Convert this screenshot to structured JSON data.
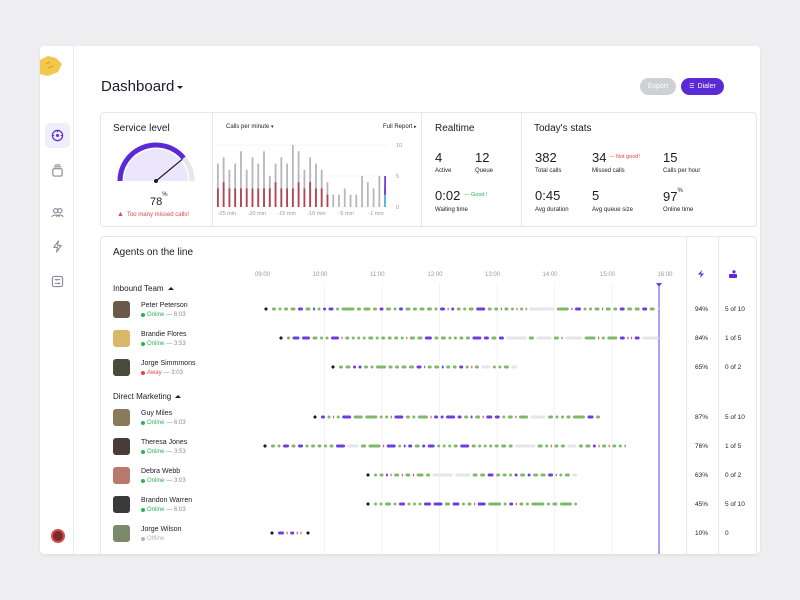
{
  "page": {
    "title": "Dashboard"
  },
  "toolbar": {
    "export_label": "Export",
    "dialer_label": "Dialer"
  },
  "sidebar": {
    "items": [
      {
        "name": "dashboard",
        "icon": "compass-icon",
        "active": true
      },
      {
        "name": "archive",
        "icon": "stack-icon",
        "active": false
      },
      {
        "name": "team",
        "icon": "users-icon",
        "active": false
      },
      {
        "name": "activity",
        "icon": "bolt-icon",
        "active": false
      },
      {
        "name": "settings",
        "icon": "sliders-icon",
        "active": false
      }
    ]
  },
  "service_level": {
    "title": "Service level",
    "value": "78",
    "unit": "%",
    "warning": "Too many missed calls!",
    "level": 0.78
  },
  "calls_chart": {
    "dropdown": "Calls per minute",
    "full_report": "Full Report",
    "y_ticks": [
      "10",
      "5",
      "0"
    ],
    "x_ticks": [
      "-25 min",
      "-20 min",
      "-15 min",
      "-10 min",
      "-5 min",
      "-1 min"
    ]
  },
  "chart_data": {
    "type": "bar",
    "title": "Calls per minute",
    "ylim": [
      0,
      10
    ],
    "x_ticks": [
      "-25 min",
      "-20 min",
      "-15 min",
      "-10 min",
      "-5 min",
      "-1 min"
    ],
    "series": [
      {
        "name": "total",
        "values": [
          7,
          8,
          6,
          7,
          9,
          6,
          8,
          7,
          9,
          5,
          7,
          8,
          7,
          10,
          9,
          6,
          8,
          7,
          6,
          4,
          2,
          2,
          3,
          2,
          2,
          5,
          4,
          3,
          5,
          4
        ]
      },
      {
        "name": "missed",
        "values": [
          3,
          4,
          3,
          3,
          3,
          3,
          3,
          3,
          3,
          3,
          4,
          3,
          3,
          3,
          4,
          3,
          4,
          3,
          3,
          2,
          0,
          0,
          0,
          0,
          0,
          0,
          0,
          0,
          0,
          3
        ]
      }
    ]
  },
  "realtime": {
    "title": "Realtime",
    "active_value": "4",
    "active_label": "Active",
    "queue_value": "12",
    "queue_label": "Queue",
    "waiting_value": "0:02",
    "waiting_badge": "— Good !",
    "waiting_label": "Waiting time"
  },
  "today": {
    "title": "Today's stats",
    "total_calls_value": "382",
    "total_calls_label": "Total calls",
    "missed_value": "34",
    "missed_badge": "— Not good!",
    "missed_label": "Missed calls",
    "cph_value": "15",
    "cph_label": "Calls per hour",
    "avg_duration_value": "0:45",
    "avg_duration_label": "Avg duration",
    "queue_size_value": "5",
    "queue_size_label": "Avg queue size",
    "online_value": "97",
    "online_unit": "%",
    "online_label": "Online time"
  },
  "agents": {
    "title": "Agents on the line",
    "time_ticks": [
      "09:00",
      "10:00",
      "11:00",
      "12:00",
      "13:00",
      "14:00",
      "15:00",
      "16:00"
    ],
    "colors": {
      "green": "#7fb86a",
      "purple": "#6a3ee0",
      "red": "#e2454a",
      "gray": "#e4e4ea",
      "online": "#31b057",
      "away": "#e2454a",
      "offline": "#b3b3bd"
    },
    "groups": [
      {
        "name": "Inbound Team",
        "agents": [
          {
            "name": "Peter Peterson",
            "status": "Online",
            "time": " — 6:03",
            "color": "green",
            "percent": "94%",
            "ratio": "5 of 10"
          },
          {
            "name": "Brandie Flores",
            "status": "Online",
            "time": " — 3:53",
            "color": "green",
            "percent": "84%",
            "ratio": "1 of 5"
          },
          {
            "name": "Jorge Simmmons",
            "status": "Away",
            "time": " — 3:03",
            "color": "red",
            "percent": "65%",
            "ratio": "0 of 2"
          }
        ]
      },
      {
        "name": "Direct Marketing",
        "agents": [
          {
            "name": "Guy Miles",
            "status": "Online",
            "time": " — 6:03",
            "color": "green",
            "percent": "87%",
            "ratio": "5 of 10"
          },
          {
            "name": "Theresa Jones",
            "status": "Online",
            "time": " — 3:53",
            "color": "green",
            "percent": "76%",
            "ratio": "1 of 5"
          },
          {
            "name": "Debra Webb",
            "status": "Online",
            "time": " — 3:03",
            "color": "green",
            "percent": "63%",
            "ratio": "0 of 2"
          },
          {
            "name": "Brandon Warren",
            "status": "Online",
            "time": " — 6:03",
            "color": "green",
            "percent": "45%",
            "ratio": "5 of 10"
          },
          {
            "name": "Jorge Wilson",
            "status": "Offline",
            "time": "",
            "color": "gray",
            "percent": "10%",
            "ratio": "0"
          }
        ]
      }
    ]
  }
}
